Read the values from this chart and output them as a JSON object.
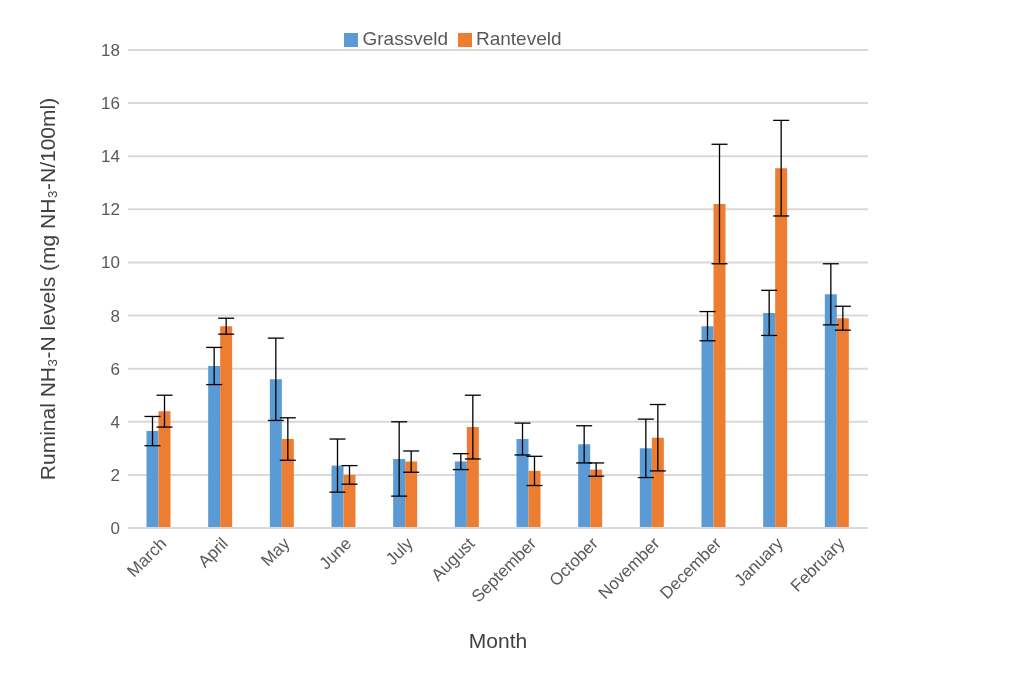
{
  "chart_data": {
    "type": "bar",
    "xlabel": "Month",
    "ylabel": "Ruminal NH₃-N levels (mg NH₃-N/100ml)",
    "categories": [
      "March",
      "April",
      "May",
      "June",
      "July",
      "August",
      "September",
      "October",
      "November",
      "December",
      "January",
      "February"
    ],
    "series": [
      {
        "name": "Grassveld",
        "color": "#5b9bd5",
        "values": [
          3.65,
          6.1,
          5.6,
          2.35,
          2.6,
          2.5,
          3.35,
          3.15,
          3.0,
          7.6,
          8.1,
          8.8
        ],
        "errors": [
          0.55,
          0.7,
          1.55,
          1.0,
          1.4,
          0.3,
          0.6,
          0.7,
          1.1,
          0.55,
          0.85,
          1.15
        ]
      },
      {
        "name": "Ranteveld",
        "color": "#ed7d31",
        "values": [
          4.4,
          7.6,
          3.35,
          2.0,
          2.5,
          3.8,
          2.15,
          2.2,
          3.4,
          12.2,
          13.55,
          7.9
        ],
        "errors": [
          0.6,
          0.3,
          0.8,
          0.35,
          0.4,
          1.2,
          0.55,
          0.25,
          1.25,
          2.25,
          1.8,
          0.45
        ]
      }
    ],
    "ylim": [
      0,
      18
    ],
    "yticks": [
      0,
      2,
      4,
      6,
      8,
      10,
      12,
      14,
      16,
      18
    ],
    "grid": "y",
    "legend": "top"
  }
}
